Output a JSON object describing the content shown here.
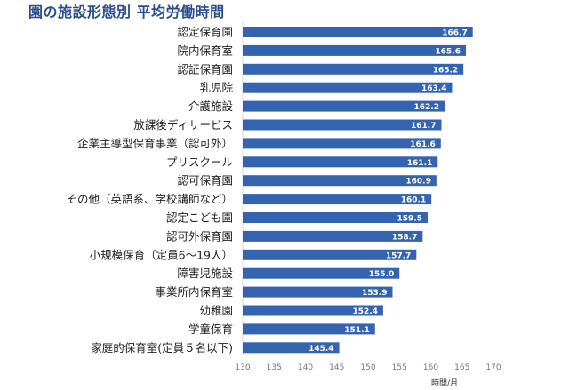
{
  "title": "園の施設形態別 平均労働時間",
  "chart_data": {
    "type": "bar",
    "orientation": "horizontal",
    "title": "園の施設形態別 平均労働時間",
    "xlabel": "時間/月",
    "ylabel": "",
    "xlim": [
      130,
      170
    ],
    "xticks": [
      130,
      135,
      140,
      145,
      150,
      155,
      160,
      165,
      170
    ],
    "grid": false,
    "bar_color": "#3464b0",
    "categories": [
      "認定保育園",
      "院内保育室",
      "認証保育園",
      "乳児院",
      "介護施設",
      "放課後ディサービス",
      "企業主導型保育事業（認可外）",
      "プリスクール",
      "認可保育園",
      "その他（英語系、学校講師など）",
      "認定こども園",
      "認可外保育園",
      "小規模保育（定員6～19人）",
      "障害児施設",
      "事業所内保育室",
      "幼稚園",
      "学童保育",
      "家庭的保育室(定員５名以下)"
    ],
    "values": [
      166.7,
      165.6,
      165.2,
      163.4,
      162.2,
      161.7,
      161.6,
      161.1,
      160.9,
      160.1,
      159.5,
      158.7,
      157.7,
      155.0,
      153.9,
      152.4,
      151.1,
      145.4
    ],
    "value_labels": [
      "166.7",
      "165.6",
      "165.2",
      "163.4",
      "162.2",
      "161.7",
      "161.6",
      "161.1",
      "160.9",
      "160.1",
      "159.5",
      "158.7",
      "157.7",
      "155.0",
      "153.9",
      "152.4",
      "151.1",
      "145.4"
    ]
  }
}
